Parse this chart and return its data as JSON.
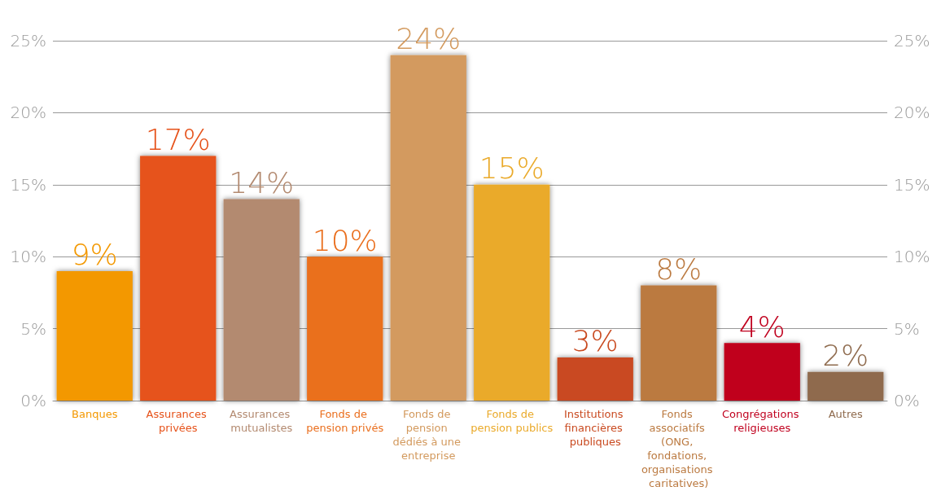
{
  "chart_data": {
    "type": "bar",
    "categories": [
      "Banques",
      "Assurances privées",
      "Assurances mutualistes",
      "Fonds de pension privés",
      "Fonds de pension dédiés à une entreprise",
      "Fonds de pension publics",
      "Institutions financières publiques",
      "Fonds associatifs (ONG, fondations, organisations caritatives)",
      "Congrégations religieuses",
      "Autres"
    ],
    "values": [
      9,
      17,
      14,
      10,
      24,
      15,
      3,
      8,
      4,
      2
    ],
    "colors": [
      "#f39800",
      "#e6521a",
      "#b38a70",
      "#ea6f1e",
      "#d39a5e",
      "#eaaa2b",
      "#c94a20",
      "#bb7a41",
      "#c0001e",
      "#8f6b4e"
    ],
    "value_labels": [
      "9%",
      "17%",
      "14%",
      "10%",
      "24%",
      "15%",
      "3%",
      "8%",
      "4%",
      "2%"
    ],
    "ylim": [
      0,
      25
    ],
    "yticks": [
      {
        "value": 0,
        "label": "0%"
      },
      {
        "value": 5,
        "label": "5%"
      },
      {
        "value": 10,
        "label": "10%"
      },
      {
        "value": 15,
        "label": "15%"
      },
      {
        "value": 20,
        "label": "20%"
      },
      {
        "value": 25,
        "label": "25%"
      }
    ],
    "y2lim": [
      0,
      25
    ],
    "y2ticks": [
      {
        "value": 0,
        "label": "0%"
      },
      {
        "value": 5,
        "label": "5%"
      },
      {
        "value": 10,
        "label": "10%"
      },
      {
        "value": 15,
        "label": "15%"
      },
      {
        "value": 20,
        "label": "20%"
      },
      {
        "value": 25,
        "label": "25%"
      }
    ],
    "grid": "y"
  }
}
